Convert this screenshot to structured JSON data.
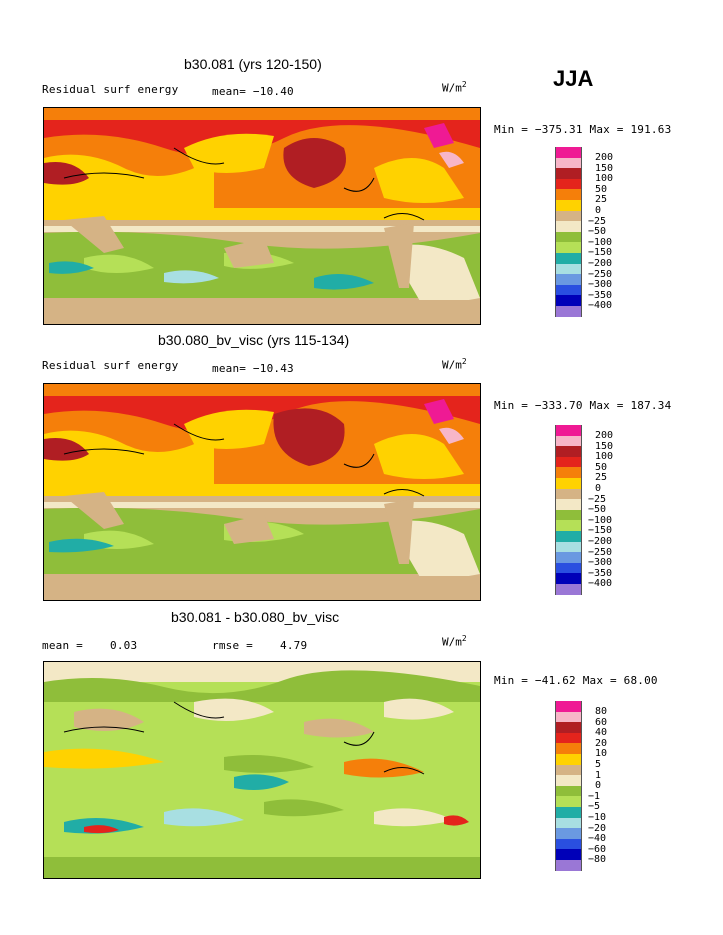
{
  "season": "JJA",
  "unit": "W/m",
  "unit_exp": "2",
  "panels": [
    {
      "title": "b30.081 (yrs 120-150)",
      "field": "Residual surf energy",
      "mean": "mean= −10.40",
      "minmax": "Min = −375.31 Max = 191.63",
      "legend_labels": [
        "200",
        "150",
        "100",
        "50",
        "25",
        "0",
        "−25",
        "−50",
        "−100",
        "−150",
        "−200",
        "−250",
        "−300",
        "−350",
        "−400"
      ],
      "legend_colors": [
        "#ef1a94",
        "#f7b6c8",
        "#b01e23",
        "#e4241c",
        "#f57f0a",
        "#ffd200",
        "#d5b385",
        "#f3e8c6",
        "#8fbe3a",
        "#b5e057",
        "#21ada6",
        "#a8dfe2",
        "#6a99e1",
        "#2a4fe0",
        "#0000b8",
        "#9a77d6"
      ]
    },
    {
      "title": "b30.080_bv_visc (yrs 115-134)",
      "field": "Residual surf energy",
      "mean": "mean= −10.43",
      "minmax": "Min = −333.70 Max = 187.34",
      "legend_labels": [
        "200",
        "150",
        "100",
        "50",
        "25",
        "0",
        "−25",
        "−50",
        "−100",
        "−150",
        "−200",
        "−250",
        "−300",
        "−350",
        "−400"
      ],
      "legend_colors": [
        "#ef1a94",
        "#f7b6c8",
        "#b01e23",
        "#e4241c",
        "#f57f0a",
        "#ffd200",
        "#d5b385",
        "#f3e8c6",
        "#8fbe3a",
        "#b5e057",
        "#21ada6",
        "#a8dfe2",
        "#6a99e1",
        "#2a4fe0",
        "#0000b8",
        "#9a77d6"
      ]
    },
    {
      "title": "b30.081 - b30.080_bv_visc",
      "field": "mean =",
      "mean": "0.03",
      "rmse_label": "rmse =",
      "rmse_value": "4.79",
      "minmax": "Min = −41.62 Max =  68.00",
      "legend_labels": [
        "80",
        "60",
        "40",
        "20",
        "10",
        "5",
        "1",
        "0",
        "−1",
        "−5",
        "−10",
        "−20",
        "−40",
        "−60",
        "−80"
      ],
      "legend_colors": [
        "#ef1a94",
        "#f7b6c8",
        "#b01e23",
        "#e4241c",
        "#f57f0a",
        "#ffd200",
        "#d5b385",
        "#f3e8c6",
        "#8fbe3a",
        "#b5e057",
        "#21ada6",
        "#a8dfe2",
        "#6a99e1",
        "#2a4fe0",
        "#0000b8",
        "#9a77d6"
      ]
    }
  ]
}
